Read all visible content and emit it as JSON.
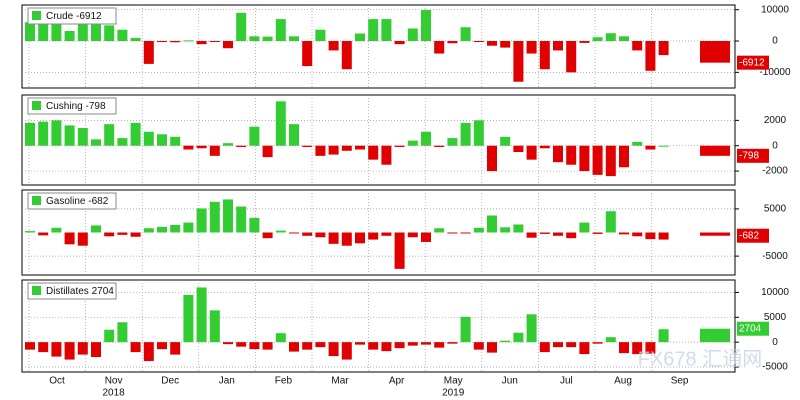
{
  "chart_data": [
    {
      "type": "bar",
      "series": [
        {
          "name": "Crude",
          "color_pos": "#33cc33",
          "color_neg": "#e00000",
          "values": [
            6000,
            6300,
            6600,
            3200,
            7000,
            10500,
            5000,
            3600,
            1000,
            -7300,
            -300,
            -400,
            200,
            -1000,
            -200,
            -2300,
            9000,
            1500,
            1400,
            7000,
            1500,
            -8000,
            3600,
            -3000,
            -9000,
            2400,
            7000,
            7000,
            -1000,
            4000,
            9900,
            -4000,
            -700,
            4400,
            -300,
            -1500,
            -2100,
            -13000,
            -4000,
            -9000,
            -3000,
            -10000,
            -600,
            1200,
            2500,
            1500,
            -3000,
            -9500,
            -4500,
            -6912
          ]
        }
      ],
      "ylim": [
        -15000,
        11500
      ],
      "yticks": [
        10000,
        0,
        -10000
      ],
      "grid": true
    },
    {
      "type": "bar",
      "series": [
        {
          "name": "Cushing",
          "color_pos": "#33cc33",
          "color_neg": "#e00000",
          "values": [
            1800,
            1900,
            2000,
            1600,
            1400,
            500,
            1700,
            600,
            1800,
            1100,
            900,
            700,
            -300,
            -200,
            -800,
            200,
            -100,
            1500,
            -900,
            3500,
            1700,
            -100,
            -800,
            -700,
            -400,
            -300,
            -1100,
            -1500,
            -100,
            400,
            1100,
            -100,
            600,
            1800,
            2000,
            -2000,
            700,
            -500,
            -1100,
            -200,
            -1300,
            -1500,
            -2000,
            -2300,
            -2400,
            -1700,
            300,
            -300,
            0,
            -798
          ]
        }
      ],
      "ylim": [
        -3100,
        4000
      ],
      "yticks": [
        2000,
        0,
        -2000
      ],
      "grid": true
    },
    {
      "type": "bar",
      "series": [
        {
          "name": "Gasoline",
          "color_pos": "#33cc33",
          "color_neg": "#e00000",
          "values": [
            300,
            -600,
            1000,
            -2500,
            -2800,
            1500,
            -800,
            -500,
            -900,
            900,
            1200,
            1600,
            2100,
            5100,
            6500,
            7000,
            5500,
            3100,
            -1200,
            400,
            -100,
            -700,
            -1000,
            -2400,
            -2800,
            -2300,
            -1500,
            -700,
            -7700,
            -1000,
            -2000,
            900,
            -200,
            -100,
            1000,
            3600,
            1100,
            1700,
            -1100,
            -300,
            -700,
            -1200,
            2100,
            -300,
            4500,
            -400,
            -800,
            -1400,
            -1500,
            -682
          ]
        }
      ],
      "ylim": [
        -9000,
        9000
      ],
      "yticks": [
        5000,
        -5000
      ],
      "grid": true
    },
    {
      "type": "bar",
      "series": [
        {
          "name": "Distillates",
          "color_pos": "#33cc33",
          "color_neg": "#e00000",
          "values": [
            -1500,
            -2000,
            -2900,
            -3500,
            -2500,
            -3000,
            2500,
            4000,
            -2000,
            -3800,
            -1400,
            -2500,
            9500,
            11000,
            6400,
            -400,
            -900,
            -1400,
            -1500,
            1800,
            -1900,
            -1500,
            -1000,
            -2800,
            -3500,
            -500,
            -1500,
            -1800,
            -1200,
            -700,
            -500,
            -1100,
            -300,
            5100,
            -1500,
            -2100,
            300,
            1900,
            5600,
            -2000,
            -1000,
            -1000,
            -2400,
            -300,
            1000,
            -2200,
            -2400,
            -2300,
            2600,
            2704
          ]
        }
      ],
      "ylim": [
        -6000,
        12500
      ],
      "yticks": [
        10000,
        5000,
        0,
        -5000
      ],
      "grid": true
    }
  ],
  "x_axis": {
    "months": [
      "Oct",
      "Nov",
      "Dec",
      "Jan",
      "Feb",
      "Mar",
      "Apr",
      "May",
      "Jun",
      "Jul",
      "Aug",
      "Sep"
    ],
    "years": [
      "2018",
      "2019"
    ]
  },
  "watermark": "FX678 汇通网"
}
